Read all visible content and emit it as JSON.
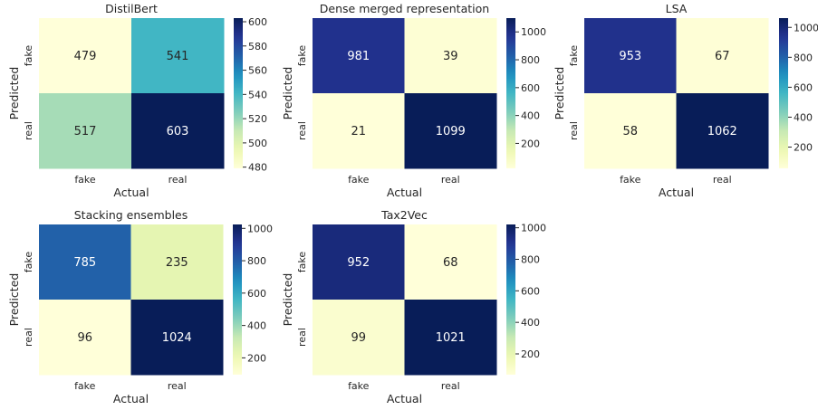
{
  "chart_data": [
    {
      "type": "heatmap",
      "title": "DistilBert",
      "xlabel": "Actual",
      "ylabel": "Predicted",
      "x_categories": [
        "fake",
        "real"
      ],
      "y_categories": [
        "fake",
        "real"
      ],
      "values": [
        [
          479,
          541
        ],
        [
          517,
          603
        ]
      ],
      "colormap": "YlGnBu",
      "vmin": 479,
      "vmax": 603,
      "colorbar_ticks": [
        480,
        500,
        520,
        540,
        560,
        580,
        600
      ]
    },
    {
      "type": "heatmap",
      "title": "Dense merged representation",
      "xlabel": "Actual",
      "ylabel": "Predicted",
      "x_categories": [
        "fake",
        "real"
      ],
      "y_categories": [
        "fake",
        "real"
      ],
      "values": [
        [
          981,
          39
        ],
        [
          21,
          1099
        ]
      ],
      "colormap": "YlGnBu",
      "vmin": 21,
      "vmax": 1099,
      "colorbar_ticks": [
        200,
        400,
        600,
        800,
        1000
      ]
    },
    {
      "type": "heatmap",
      "title": "LSA",
      "xlabel": "Actual",
      "ylabel": "Predicted",
      "x_categories": [
        "fake",
        "real"
      ],
      "y_categories": [
        "fake",
        "real"
      ],
      "values": [
        [
          953,
          67
        ],
        [
          58,
          1062
        ]
      ],
      "colormap": "YlGnBu",
      "vmin": 58,
      "vmax": 1062,
      "colorbar_ticks": [
        200,
        400,
        600,
        800,
        1000
      ]
    },
    {
      "type": "heatmap",
      "title": "Stacking ensembles",
      "xlabel": "Actual",
      "ylabel": "Predicted",
      "x_categories": [
        "fake",
        "real"
      ],
      "y_categories": [
        "fake",
        "real"
      ],
      "values": [
        [
          785,
          235
        ],
        [
          96,
          1024
        ]
      ],
      "colormap": "YlGnBu",
      "vmin": 96,
      "vmax": 1024,
      "colorbar_ticks": [
        200,
        400,
        600,
        800,
        1000
      ]
    },
    {
      "type": "heatmap",
      "title": "Tax2Vec",
      "xlabel": "Actual",
      "ylabel": "Predicted",
      "x_categories": [
        "fake",
        "real"
      ],
      "y_categories": [
        "fake",
        "real"
      ],
      "values": [
        [
          952,
          68
        ],
        [
          99,
          1021
        ]
      ],
      "colormap": "YlGnBu",
      "vmin": 68,
      "vmax": 1021,
      "colorbar_ticks": [
        200,
        400,
        600,
        800,
        1000
      ]
    }
  ]
}
